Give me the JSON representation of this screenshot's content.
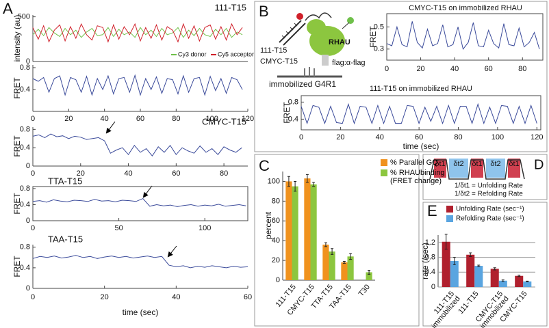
{
  "panels": [
    "A",
    "B",
    "C",
    "D",
    "E"
  ],
  "diagram_b": {
    "dna_1": "111-T15",
    "dna_2": "CMYC-T15",
    "protein": "RHAU",
    "tag": "flag:α-flag",
    "surface": "immobilized G4R1"
  },
  "diagram_d": {
    "intervals": [
      "δt1",
      "δt2",
      "δt1",
      "δt2",
      "δt1"
    ],
    "unfolding": "1/δt1 = Unfolding Rate",
    "refolding": "1/δt2 = Refolding Rate"
  },
  "chart_data": [
    {
      "type": "line",
      "title": "111-T15",
      "y_label": "intensity (au)",
      "xlim": [
        0,
        120
      ],
      "ylim": [
        0,
        520
      ],
      "yticks": [
        0,
        500
      ],
      "legend": "bottom-right",
      "x": [
        0,
        3,
        6,
        9,
        12,
        15,
        18,
        21,
        24,
        27,
        30,
        33,
        36,
        39,
        42,
        45,
        48,
        51,
        54,
        57,
        60,
        63,
        66,
        69,
        72,
        75,
        78,
        81,
        84,
        87,
        90,
        93,
        96,
        99,
        102,
        105,
        108,
        111,
        114,
        117
      ],
      "series": [
        {
          "name": "Cy3 donor",
          "color": "#6fc04a",
          "values": [
            300,
            360,
            290,
            380,
            320,
            280,
            370,
            300,
            350,
            270,
            330,
            370,
            290,
            300,
            380,
            280,
            360,
            300,
            330,
            270,
            380,
            300,
            350,
            280,
            370,
            300,
            320,
            380,
            270,
            350,
            290,
            370,
            300,
            280,
            360,
            300,
            370,
            270,
            330,
            300
          ]
        },
        {
          "name": "Cy5 acceptor",
          "color": "#d0202a",
          "values": [
            380,
            250,
            400,
            220,
            350,
            410,
            230,
            390,
            260,
            420,
            300,
            240,
            400,
            380,
            220,
            410,
            250,
            390,
            300,
            420,
            230,
            380,
            260,
            410,
            240,
            390,
            350,
            220,
            420,
            260,
            400,
            230,
            380,
            410,
            250,
            390,
            240,
            420,
            300,
            380
          ]
        }
      ]
    },
    {
      "type": "line",
      "y_label": "FRET",
      "xlim": [
        0,
        120
      ],
      "ylim": [
        0,
        0.85
      ],
      "yticks": [
        0.4,
        0.8
      ],
      "xticks": [
        0,
        20,
        40,
        60,
        80,
        100,
        120
      ],
      "x": [
        0,
        3,
        6,
        9,
        12,
        15,
        18,
        21,
        24,
        27,
        30,
        33,
        36,
        39,
        42,
        45,
        48,
        51,
        54,
        57,
        60,
        63,
        66,
        69,
        72,
        75,
        78,
        81,
        84,
        87,
        90,
        93,
        96,
        99,
        102,
        105,
        108,
        111,
        114,
        117
      ],
      "series": [
        {
          "color": "#3a4a9a",
          "values": [
            0.6,
            0.55,
            0.62,
            0.35,
            0.6,
            0.65,
            0.3,
            0.62,
            0.58,
            0.35,
            0.64,
            0.3,
            0.6,
            0.4,
            0.65,
            0.32,
            0.6,
            0.62,
            0.35,
            0.66,
            0.3,
            0.6,
            0.4,
            0.63,
            0.33,
            0.6,
            0.58,
            0.32,
            0.65,
            0.35,
            0.6,
            0.62,
            0.3,
            0.64,
            0.38,
            0.6,
            0.33,
            0.62,
            0.58,
            0.4
          ]
        }
      ]
    },
    {
      "type": "line",
      "title": "CMYC-T15",
      "y_label": "FRET",
      "xlim": [
        0,
        90
      ],
      "ylim": [
        0,
        0.85
      ],
      "yticks": [
        0,
        0.4,
        0.8
      ],
      "xticks": [
        0,
        20,
        40,
        60,
        80
      ],
      "x": [
        0,
        2.5,
        5,
        7.5,
        10,
        12.5,
        15,
        17.5,
        20,
        22.5,
        25,
        27.5,
        30,
        32.5,
        35,
        37.5,
        40,
        42.5,
        45,
        47.5,
        50,
        52.5,
        55,
        57.5,
        60,
        62.5,
        65,
        67.5,
        70,
        72.5,
        75,
        77.5,
        80,
        82.5,
        85,
        87.5
      ],
      "series": [
        {
          "color": "#3a4a9a",
          "values": [
            0.65,
            0.68,
            0.62,
            0.7,
            0.64,
            0.66,
            0.6,
            0.65,
            0.63,
            0.58,
            0.6,
            0.62,
            0.55,
            0.28,
            0.35,
            0.4,
            0.25,
            0.45,
            0.3,
            0.38,
            0.22,
            0.42,
            0.3,
            0.45,
            0.25,
            0.4,
            0.33,
            0.28,
            0.44,
            0.3,
            0.38,
            0.25,
            0.42,
            0.35,
            0.3,
            0.4
          ]
        }
      ]
    },
    {
      "type": "line",
      "title": "TTA-T15",
      "y_label": "FRET",
      "xlim": [
        0,
        125
      ],
      "ylim": [
        0,
        0.85
      ],
      "yticks": [
        0,
        0.4,
        0.8
      ],
      "xticks": [
        0,
        50,
        100
      ],
      "x": [
        0,
        4,
        8,
        12,
        16,
        20,
        24,
        28,
        32,
        36,
        40,
        44,
        48,
        52,
        56,
        60,
        64,
        68,
        72,
        76,
        80,
        84,
        88,
        92,
        96,
        100,
        104,
        108,
        112,
        116,
        120,
        124
      ],
      "series": [
        {
          "color": "#3a4a9a",
          "values": [
            0.48,
            0.5,
            0.46,
            0.52,
            0.49,
            0.47,
            0.51,
            0.5,
            0.48,
            0.53,
            0.49,
            0.5,
            0.47,
            0.51,
            0.5,
            0.48,
            0.55,
            0.36,
            0.4,
            0.37,
            0.39,
            0.35,
            0.38,
            0.4,
            0.36,
            0.39,
            0.37,
            0.41,
            0.36,
            0.38,
            0.4,
            0.37
          ]
        }
      ]
    },
    {
      "type": "line",
      "title": "TAA-T15",
      "y_label": "FRET",
      "x_label": "time (sec)",
      "xlim": [
        0,
        60
      ],
      "ylim": [
        0,
        0.85
      ],
      "yticks": [
        0,
        0.4,
        0.8
      ],
      "xticks": [
        0,
        20,
        40,
        60
      ],
      "x": [
        0,
        2,
        4,
        6,
        8,
        10,
        12,
        14,
        16,
        18,
        20,
        22,
        24,
        26,
        28,
        30,
        32,
        34,
        36,
        38,
        40,
        42,
        44,
        46,
        48,
        50,
        52,
        54,
        56,
        58,
        60
      ],
      "series": [
        {
          "color": "#3a4a9a",
          "values": [
            0.58,
            0.62,
            0.6,
            0.63,
            0.59,
            0.61,
            0.64,
            0.6,
            0.62,
            0.58,
            0.61,
            0.63,
            0.6,
            0.62,
            0.59,
            0.61,
            0.63,
            0.6,
            0.62,
            0.45,
            0.42,
            0.44,
            0.4,
            0.43,
            0.41,
            0.44,
            0.42,
            0.4,
            0.43,
            0.41,
            0.42
          ]
        }
      ]
    },
    {
      "type": "line",
      "title": "CMYC-T15 on immobilized RHAU",
      "y_label": "FRET",
      "xlim": [
        0,
        92
      ],
      "ylim": [
        0.2,
        0.62
      ],
      "yticks": [
        0.3,
        0.5
      ],
      "xticks": [
        0,
        20,
        40,
        60,
        80
      ],
      "x": [
        0,
        3,
        6,
        9,
        12,
        15,
        18,
        21,
        24,
        27,
        30,
        33,
        36,
        39,
        42,
        45,
        48,
        51,
        54,
        57,
        60,
        63,
        66,
        69,
        72,
        75,
        78,
        81,
        84,
        87,
        90
      ],
      "series": [
        {
          "color": "#3a4a9a",
          "values": [
            0.35,
            0.33,
            0.5,
            0.34,
            0.32,
            0.55,
            0.36,
            0.31,
            0.48,
            0.33,
            0.35,
            0.52,
            0.32,
            0.34,
            0.5,
            0.3,
            0.36,
            0.54,
            0.33,
            0.32,
            0.47,
            0.35,
            0.31,
            0.53,
            0.34,
            0.33,
            0.49,
            0.32,
            0.36,
            0.45,
            0.3
          ]
        }
      ]
    },
    {
      "type": "line",
      "title": "111-T15 on immobilized RHAU",
      "y_label": "FRET",
      "x_label": "time (sec)",
      "xlim": [
        0,
        122
      ],
      "ylim": [
        0.15,
        0.95
      ],
      "yticks": [
        0.4,
        0.8
      ],
      "xticks": [
        0,
        20,
        40,
        60,
        80,
        100,
        120
      ],
      "x": [
        0,
        3,
        6,
        9,
        12,
        15,
        18,
        21,
        24,
        27,
        30,
        33,
        36,
        39,
        42,
        45,
        48,
        51,
        54,
        57,
        60,
        63,
        66,
        69,
        72,
        75,
        78,
        81,
        84,
        87,
        90,
        93,
        96,
        99,
        102,
        105,
        108,
        111,
        114,
        117,
        120
      ],
      "series": [
        {
          "color": "#3a4a9a",
          "values": [
            0.7,
            0.3,
            0.72,
            0.68,
            0.3,
            0.7,
            0.32,
            0.3,
            0.75,
            0.3,
            0.7,
            0.68,
            0.3,
            0.72,
            0.3,
            0.7,
            0.3,
            0.3,
            0.72,
            0.7,
            0.3,
            0.68,
            0.35,
            0.7,
            0.3,
            0.72,
            0.3,
            0.7,
            0.7,
            0.3,
            0.75,
            0.3,
            0.68,
            0.3,
            0.72,
            0.7,
            0.3,
            0.7,
            0.3,
            0.72,
            0.3
          ]
        }
      ]
    },
    {
      "type": "bar",
      "y_label": "percent",
      "ylim": [
        0,
        110
      ],
      "yticks": [
        0,
        20,
        40,
        60,
        80,
        100
      ],
      "categories": [
        "111-T15",
        "CMYC-T15",
        "TTA-T15",
        "TAA-T15",
        "T30"
      ],
      "series": [
        {
          "name": "% Parallel GQ",
          "color": "#f0921e",
          "values": [
            100,
            103,
            36,
            18,
            null
          ],
          "errors": [
            5,
            4,
            2,
            1,
            null
          ]
        },
        {
          "name": "% RHAUbinding (FRET change)",
          "color": "#8cc63f",
          "values": [
            95,
            97,
            29,
            24,
            8
          ],
          "errors": [
            5,
            2,
            3,
            3,
            2
          ]
        }
      ]
    },
    {
      "type": "bar",
      "y_label": "rate (/sec)",
      "ylim": [
        0,
        1.4
      ],
      "yticks": [
        0,
        0.4,
        0.8,
        1.2
      ],
      "grid": true,
      "categories": [
        [
          "111-T15",
          "immobilized"
        ],
        [
          "111-T15"
        ],
        [
          "CMYC-T15",
          "immobilized"
        ],
        [
          "CMYC-T15"
        ]
      ],
      "series": [
        {
          "name": "Unfolding Rate (sec⁻¹)",
          "color": "#b0202e",
          "values": [
            1.22,
            0.87,
            0.49,
            0.3
          ],
          "errors": [
            0.2,
            0.05,
            0.03,
            0.02
          ]
        },
        {
          "name": "Refolding Rate (sec⁻¹)",
          "color": "#5aa5e0",
          "values": [
            0.7,
            0.57,
            0.17,
            0.15
          ],
          "errors": [
            0.1,
            0.02,
            0.02,
            0.01
          ]
        }
      ]
    }
  ]
}
